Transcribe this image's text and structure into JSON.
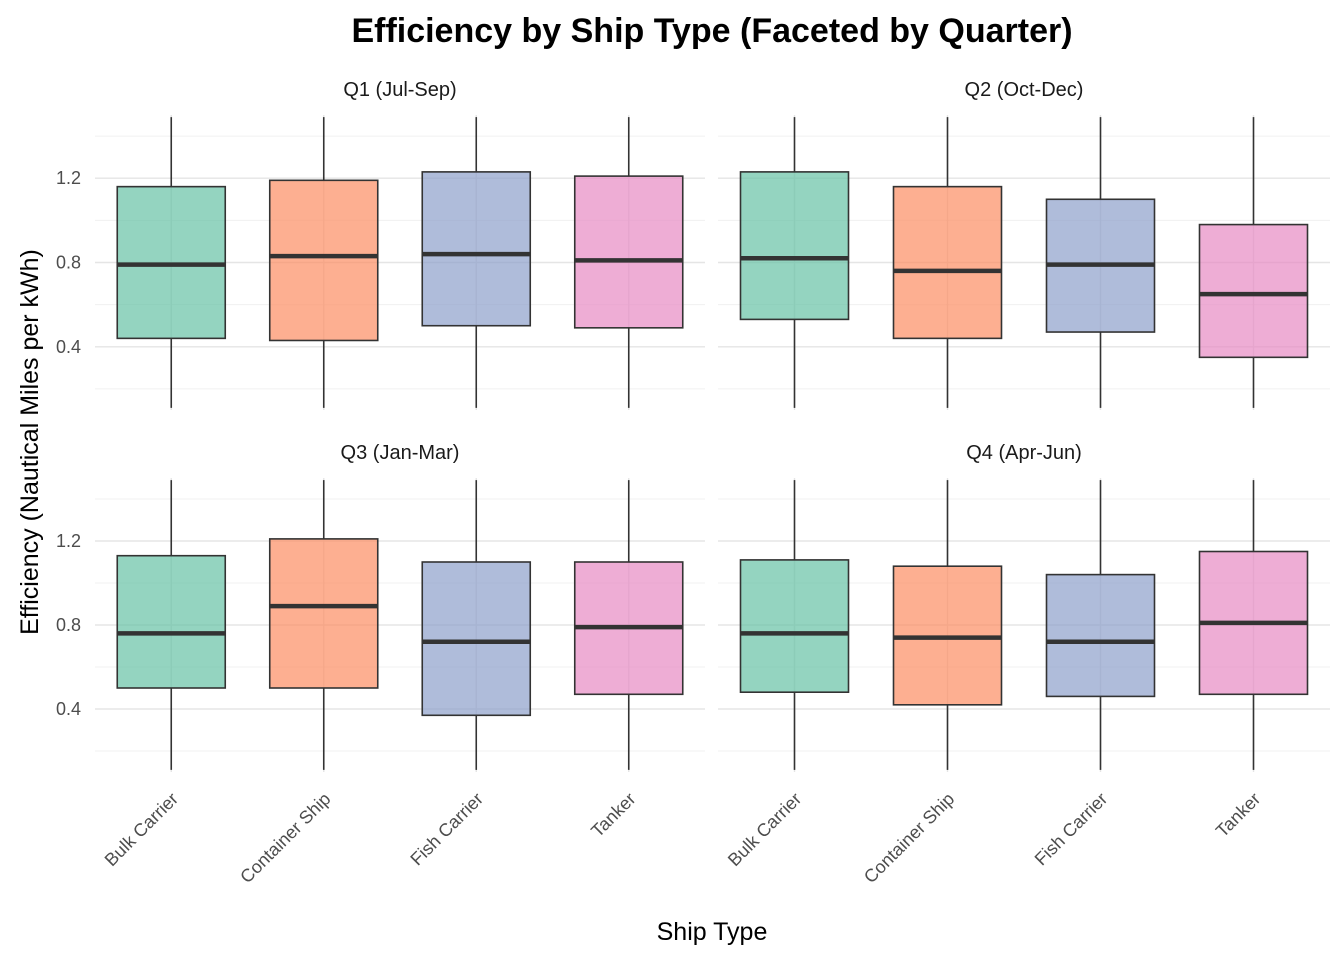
{
  "chart_data": {
    "type": "box",
    "title": "Efficiency by Ship Type (Faceted by Quarter)",
    "xlabel": "Ship Type",
    "ylabel": "Efficiency (Nautical Miles per kWh)",
    "ylim": [
      0.1,
      1.5
    ],
    "yticks": [
      "0.4",
      "0.8",
      "1.2"
    ],
    "grid": true,
    "legend": "none",
    "categories": [
      "Bulk Carrier",
      "Container Ship",
      "Fish Carrier",
      "Tanker"
    ],
    "colors": [
      "#66C2A5",
      "#FC8D62",
      "#8DA0CB",
      "#E78AC3"
    ],
    "facets": [
      {
        "label": "Q1 (Jul-Sep)",
        "boxes": [
          {
            "min": 0.11,
            "q1": 0.44,
            "median": 0.79,
            "q3": 1.16,
            "max": 1.49
          },
          {
            "min": 0.11,
            "q1": 0.43,
            "median": 0.83,
            "q3": 1.19,
            "max": 1.49
          },
          {
            "min": 0.11,
            "q1": 0.5,
            "median": 0.84,
            "q3": 1.23,
            "max": 1.49
          },
          {
            "min": 0.11,
            "q1": 0.49,
            "median": 0.81,
            "q3": 1.21,
            "max": 1.49
          }
        ]
      },
      {
        "label": "Q2 (Oct-Dec)",
        "boxes": [
          {
            "min": 0.11,
            "q1": 0.53,
            "median": 0.82,
            "q3": 1.23,
            "max": 1.49
          },
          {
            "min": 0.11,
            "q1": 0.44,
            "median": 0.76,
            "q3": 1.16,
            "max": 1.49
          },
          {
            "min": 0.11,
            "q1": 0.47,
            "median": 0.79,
            "q3": 1.1,
            "max": 1.49
          },
          {
            "min": 0.11,
            "q1": 0.35,
            "median": 0.65,
            "q3": 0.98,
            "max": 1.49
          }
        ]
      },
      {
        "label": "Q3 (Jan-Mar)",
        "boxes": [
          {
            "min": 0.11,
            "q1": 0.5,
            "median": 0.76,
            "q3": 1.13,
            "max": 1.49
          },
          {
            "min": 0.11,
            "q1": 0.5,
            "median": 0.89,
            "q3": 1.21,
            "max": 1.49
          },
          {
            "min": 0.11,
            "q1": 0.37,
            "median": 0.72,
            "q3": 1.1,
            "max": 1.49
          },
          {
            "min": 0.11,
            "q1": 0.47,
            "median": 0.79,
            "q3": 1.1,
            "max": 1.49
          }
        ]
      },
      {
        "label": "Q4 (Apr-Jun)",
        "boxes": [
          {
            "min": 0.11,
            "q1": 0.48,
            "median": 0.76,
            "q3": 1.11,
            "max": 1.49
          },
          {
            "min": 0.11,
            "q1": 0.42,
            "median": 0.74,
            "q3": 1.08,
            "max": 1.49
          },
          {
            "min": 0.11,
            "q1": 0.46,
            "median": 0.72,
            "q3": 1.04,
            "max": 1.49
          },
          {
            "min": 0.11,
            "q1": 0.47,
            "median": 0.81,
            "q3": 1.15,
            "max": 1.49
          }
        ]
      }
    ]
  }
}
